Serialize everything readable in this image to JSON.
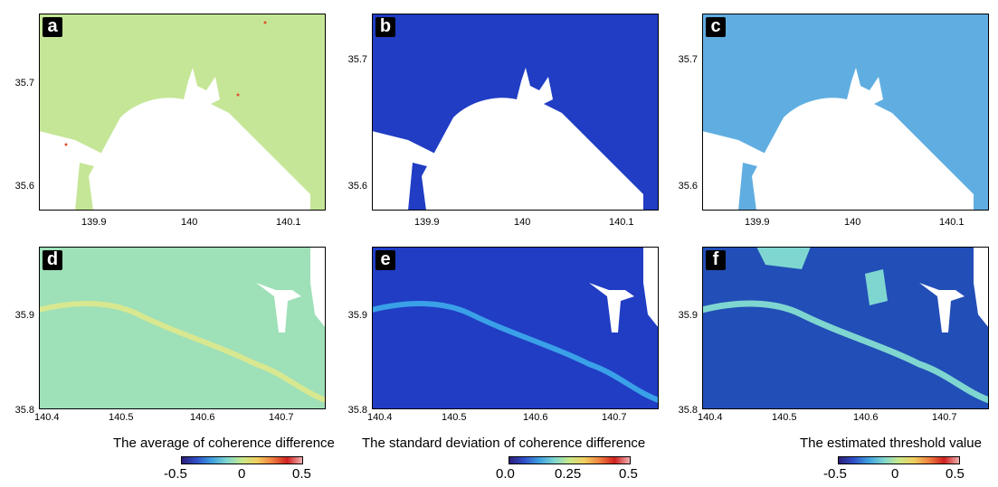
{
  "panels": [
    {
      "letter": "a",
      "xticks": [
        "139.9",
        "140",
        "140.1"
      ],
      "yticks": [
        "35.7",
        "35.6"
      ],
      "ytick_side": "left"
    },
    {
      "letter": "b",
      "xticks": [
        "139.9",
        "140",
        "140.1"
      ],
      "yticks": [
        "35.7",
        "35.6"
      ],
      "ytick_side": "left"
    },
    {
      "letter": "c",
      "xticks": [
        "139.9",
        "140",
        "140.1"
      ],
      "yticks": [
        "35.7",
        "35.6"
      ],
      "ytick_side": "left"
    },
    {
      "letter": "d",
      "xticks": [
        "140.4",
        "140.5",
        "140.6",
        "140.7"
      ],
      "yticks": [
        "35.9",
        "35.8"
      ],
      "ytick_side": "left"
    },
    {
      "letter": "e",
      "xticks": [
        "140.4",
        "140.5",
        "140.6",
        "140.7"
      ],
      "yticks": [
        "35.9",
        "35.8"
      ],
      "ytick_side": "left"
    },
    {
      "letter": "f",
      "xticks": [
        "140.4",
        "140.5",
        "140.6",
        "140.7"
      ],
      "yticks": [
        "35.9",
        "35.8"
      ],
      "ytick_side": "left"
    }
  ],
  "captions": {
    "average": "The average of coherence difference",
    "stddev": "The standard deviation of coherence difference",
    "threshold": "The estimated threshold value"
  },
  "colorbars": {
    "average": {
      "labels": [
        "-0.5",
        "0",
        "0.5"
      ],
      "min": -0.5,
      "max": 0.5
    },
    "stddev": {
      "labels": [
        "0.0",
        "0.25",
        "0.5"
      ],
      "min": 0.0,
      "max": 0.5
    },
    "threshold": {
      "labels": [
        "-0.5",
        "0",
        "0.5"
      ],
      "min": -0.5,
      "max": 0.5
    }
  },
  "colors": {
    "map_a_base": "#cfe88a",
    "map_b_base": "#1a2fbf",
    "map_c_base": "#6ec6ee",
    "map_d_base": "#9ee0b8",
    "map_e_base": "#1a2fbf",
    "map_f_base": "#2a5fd4",
    "water": "#ffffff",
    "colormap": [
      "#2b1e7a",
      "#3050c8",
      "#3fa0e0",
      "#7fd6d0",
      "#c8e88a",
      "#f0d060",
      "#f08040",
      "#d02020",
      "#f0b0b0"
    ]
  }
}
